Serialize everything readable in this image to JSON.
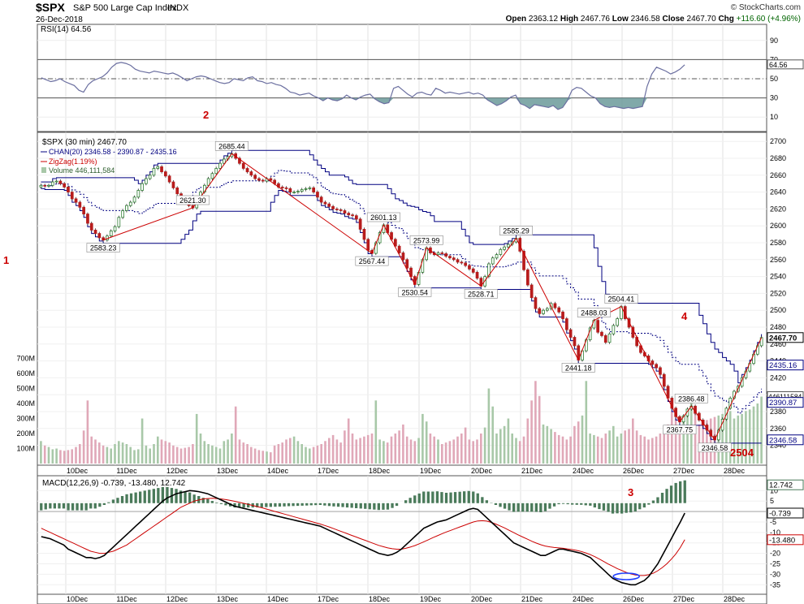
{
  "header": {
    "symbol": "$SPX",
    "name": "S&P 500 Large Cap Index",
    "exchange": "INDX",
    "date": "26-Dec-2018",
    "watermark": "© StockCharts.com",
    "ohlc": "Open 2363.12  High 2467.76  Low 2346.58  Close 2467.70  Chg +116.60 (+4.96%)",
    "ohlc_parts": [
      {
        "label": "Open",
        "value": "2363.12"
      },
      {
        "label": "High",
        "value": "2467.76"
      },
      {
        "label": "Low",
        "value": "2346.58"
      },
      {
        "label": "Close",
        "value": "2467.70"
      },
      {
        "label": "Chg",
        "value": "+116.60 (+4.96%)"
      }
    ],
    "up_color": "#006400"
  },
  "chart_data": [
    {
      "type": "line",
      "name": "RSI",
      "legend": "RSI(14) 64.56",
      "ylim": [
        0,
        100
      ],
      "yticks": [
        10,
        30,
        50,
        70,
        90
      ],
      "lines": [
        70,
        50,
        30
      ],
      "last_value": "64.56",
      "shaded_below": 30,
      "color": "#6b6fa0",
      "fill_color": "#6b9a9a",
      "values": [
        51,
        49,
        47,
        48,
        50,
        47,
        45,
        43,
        38,
        36,
        44,
        48,
        50,
        52,
        56,
        62,
        66,
        67,
        66,
        64,
        60,
        58,
        57,
        56,
        58,
        57,
        56,
        55,
        56,
        54,
        51,
        48,
        50,
        52,
        53,
        52,
        50,
        48,
        46,
        45,
        46,
        50,
        49,
        48,
        51,
        52,
        48,
        47,
        45,
        46,
        44,
        43,
        40,
        36,
        35,
        33,
        34,
        35,
        32,
        30,
        27,
        30,
        28,
        27,
        29,
        33,
        30,
        28,
        31,
        33,
        34,
        29,
        26,
        24,
        25,
        40,
        42,
        38,
        34,
        31,
        35,
        36,
        34,
        33,
        40,
        38,
        35,
        36,
        35,
        34,
        35,
        36,
        34,
        35,
        33,
        28,
        25,
        22,
        24,
        27,
        31,
        33,
        24,
        22,
        19,
        23,
        22,
        21,
        20,
        22,
        18,
        20,
        27,
        38,
        41,
        40,
        36,
        32,
        30,
        24,
        21,
        20,
        21,
        20,
        19,
        20,
        19,
        20,
        21,
        42,
        55,
        62,
        60,
        58,
        55,
        57,
        60,
        64.56
      ]
    },
    {
      "type": "candlestick",
      "name": "Price",
      "legend": "$SPX (30 min) 2467.70",
      "ylim": [
        2330,
        2705
      ],
      "yticks": [
        2340,
        2360,
        2380,
        2400,
        2420,
        2440,
        2460,
        2480,
        2500,
        2520,
        2540,
        2560,
        2580,
        2600,
        2620,
        2640,
        2660,
        2680,
        2700
      ],
      "x_ticks": [
        "10Dec",
        "11Dec",
        "12Dec",
        "13Dec",
        "14Dec",
        "17Dec",
        "18Dec",
        "19Dec",
        "20Dec",
        "21Dec",
        "24Dec",
        "26Dec",
        "27Dec",
        "28Dec"
      ],
      "close": [
        2648,
        2647,
        2648,
        2652,
        2653,
        2650,
        2646,
        2640,
        2632,
        2628,
        2622,
        2614,
        2603,
        2595,
        2591,
        2586,
        2583.23,
        2588,
        2594,
        2599,
        2610,
        2618,
        2624,
        2628,
        2634,
        2642,
        2650,
        2656,
        2660,
        2668,
        2670,
        2664,
        2659,
        2652,
        2645,
        2638,
        2632,
        2628,
        2624,
        2621.3,
        2632,
        2640,
        2648,
        2656,
        2662,
        2668,
        2674,
        2679,
        2682,
        2685.44,
        2680,
        2674,
        2668,
        2664,
        2660,
        2656,
        2654,
        2653,
        2656,
        2654,
        2650,
        2646,
        2645,
        2644,
        2640,
        2640,
        2641,
        2643,
        2644,
        2645,
        2640,
        2634,
        2628,
        2626,
        2623,
        2620,
        2619,
        2618,
        2615,
        2613,
        2612,
        2608,
        2596,
        2584,
        2571,
        2567.44,
        2580,
        2592,
        2601.13,
        2592,
        2584,
        2576,
        2568,
        2560,
        2550,
        2540,
        2530.54,
        2545,
        2560,
        2573.99,
        2568,
        2566,
        2568,
        2567,
        2564,
        2562,
        2560,
        2557,
        2556,
        2553,
        2549,
        2545,
        2538,
        2528.71,
        2540,
        2555,
        2562,
        2566,
        2572,
        2575,
        2578,
        2581,
        2585.29,
        2570,
        2548,
        2530,
        2515,
        2502,
        2496,
        2500,
        2502,
        2508,
        2503,
        2498,
        2490,
        2477,
        2468,
        2458,
        2441.18,
        2452,
        2465,
        2479,
        2488.03,
        2474,
        2470,
        2462,
        2472,
        2482,
        2490,
        2504.41,
        2490,
        2480,
        2468,
        2458,
        2450,
        2446,
        2440,
        2436,
        2432,
        2424,
        2410,
        2396,
        2384,
        2374,
        2367.75,
        2375,
        2383,
        2386.48,
        2378,
        2370,
        2364,
        2358,
        2351,
        2346.58,
        2358,
        2371,
        2384,
        2396,
        2404,
        2410,
        2420,
        2428,
        2437,
        2448,
        2458,
        2467.7
      ],
      "zigzag_legend": "ZigZag(1.19%)",
      "zigzag_color": "#cc0000",
      "zigzag_points": [
        {
          "label": "2583.23",
          "value": 2583.23
        },
        {
          "label": "2685.44",
          "value": 2685.44
        },
        {
          "label": "2621.30",
          "value": 2621.3
        },
        {
          "label": "2567.44",
          "value": 2567.44
        },
        {
          "label": "2601.13",
          "value": 2601.13
        },
        {
          "label": "2530.54",
          "value": 2530.54
        },
        {
          "label": "2573.99",
          "value": 2573.99
        },
        {
          "label": "2528.71",
          "value": 2528.71
        },
        {
          "label": "2585.29",
          "value": 2585.29
        },
        {
          "label": "2441.18",
          "value": 2441.18
        },
        {
          "label": "2488.03",
          "value": 2488.03
        },
        {
          "label": "2504.41",
          "value": 2504.41
        },
        {
          "label": "2367.75",
          "value": 2367.75
        },
        {
          "label": "2386.48",
          "value": 2386.48
        },
        {
          "label": "2346.58",
          "value": 2346.58
        }
      ],
      "channel_legend": "CHAN(20) 2346.58 - 2390.87 - 2435.16",
      "channel_color": "#000080",
      "price_labels": [
        {
          "text": "2467.70",
          "value": 2467.7,
          "style": "dark"
        },
        {
          "text": "2435.16",
          "value": 2435.16,
          "style": "navy"
        },
        {
          "text": "2390.87",
          "value": 2390.87,
          "style": "navy"
        },
        {
          "text": "2346.58",
          "value": 2346.58,
          "style": "navy"
        }
      ],
      "up_color": "#2e7d32",
      "down_color": "#b71c1c"
    },
    {
      "type": "bar",
      "name": "Volume",
      "legend": "Volume 446,111,584",
      "ylim": [
        0,
        800
      ],
      "yticks_labels": [
        "100M",
        "200M",
        "300M",
        "400M",
        "500M",
        "600M",
        "700M"
      ],
      "yticks": [
        100,
        200,
        300,
        400,
        500,
        600,
        700
      ],
      "last_value_label": "446111584",
      "values": [
        150,
        120,
        110,
        95,
        100,
        90,
        85,
        90,
        95,
        110,
        130,
        220,
        420,
        180,
        160,
        140,
        120,
        110,
        100,
        130,
        150,
        140,
        130,
        110,
        90,
        95,
        300,
        120,
        100,
        130,
        180,
        160,
        150,
        140,
        120,
        110,
        100,
        105,
        110,
        130,
        330,
        200,
        150,
        130,
        120,
        110,
        100,
        150,
        160,
        200,
        380,
        160,
        140,
        130,
        110,
        100,
        90,
        85,
        80,
        75,
        120,
        130,
        140,
        160,
        170,
        180,
        150,
        130,
        110,
        100,
        110,
        120,
        130,
        150,
        170,
        190,
        160,
        140,
        220,
        300,
        200,
        160,
        170,
        180,
        190,
        200,
        420,
        160,
        150,
        140,
        180,
        200,
        220,
        260,
        180,
        160,
        150,
        170,
        330,
        280,
        200,
        180,
        160,
        130,
        140,
        150,
        160,
        180,
        200,
        240,
        160,
        150,
        160,
        200,
        240,
        500,
        380,
        200,
        230,
        250,
        300,
        200,
        170,
        150,
        180,
        300,
        420,
        550,
        450,
        260,
        250,
        230,
        210,
        190,
        180,
        160,
        180,
        250,
        280,
        320,
        550,
        200,
        190,
        180,
        170,
        200,
        220,
        250,
        180,
        200,
        220,
        230,
        300,
        220,
        190,
        180,
        160,
        170,
        180,
        200,
        210,
        260,
        350,
        300,
        250,
        300,
        350,
        420,
        360,
        260,
        280,
        290,
        300,
        310,
        320,
        330,
        340,
        350,
        300,
        320,
        330,
        350,
        360,
        380,
        400,
        446
      ]
    },
    {
      "type": "line",
      "name": "MACD",
      "legend": "MACD(12,26,9) -0.739, -13.480, 12.742",
      "ylim": [
        -38,
        14
      ],
      "yticks": [
        -35,
        -30,
        -25,
        -20,
        -15,
        -10,
        -5,
        0,
        5,
        10
      ],
      "hist_color": "#4a7a5a",
      "line_color": "#000000",
      "signal_color": "#cc0000",
      "last_labels": [
        {
          "text": "12.742",
          "value": 12.742
        },
        {
          "text": "-0.739",
          "value": -0.739
        },
        {
          "text": "-13.480",
          "value": -13.48
        }
      ],
      "macd": [
        -12,
        -12.5,
        -13,
        -14,
        -15,
        -16,
        -18,
        -19,
        -20,
        -21,
        -22,
        -22,
        -22.5,
        -22,
        -21,
        -19,
        -17,
        -15,
        -13,
        -11,
        -9,
        -7,
        -5,
        -3,
        -1,
        1,
        3,
        5,
        6.5,
        7.5,
        8.5,
        9,
        9.5,
        10,
        9.8,
        9.5,
        9,
        8.5,
        7.5,
        6.5,
        5.5,
        4.5,
        3.5,
        2.5,
        2,
        1.5,
        1,
        0.5,
        0,
        -0.5,
        -1,
        -1.5,
        -2,
        -2.5,
        -3,
        -3.5,
        -4,
        -4.5,
        -5,
        -5.5,
        -6,
        -6.5,
        -7,
        -8,
        -9,
        -10,
        -11,
        -12,
        -13,
        -14,
        -15,
        -16,
        -17,
        -18,
        -19,
        -20,
        -20.5,
        -21,
        -20.5,
        -19.5,
        -18,
        -16,
        -14,
        -12,
        -10,
        -8,
        -7,
        -6,
        -5,
        -4.5,
        -4,
        -3,
        -2,
        -1,
        0,
        1,
        1.5,
        1,
        -1,
        -3,
        -5,
        -7,
        -9,
        -11,
        -13,
        -15,
        -16,
        -17,
        -18,
        -19,
        -20,
        -21,
        -21,
        -20,
        -19,
        -18,
        -18,
        -18.5,
        -19,
        -19.5,
        -20,
        -21,
        -22,
        -24,
        -26,
        -28,
        -30,
        -32,
        -33,
        -34,
        -34.5,
        -35,
        -35,
        -34,
        -33,
        -31,
        -28,
        -25,
        -21,
        -17,
        -13,
        -9,
        -5,
        -0.739
      ],
      "signal": [
        -8,
        -9,
        -10,
        -11,
        -12,
        -13,
        -14,
        -15,
        -16,
        -17,
        -18,
        -19,
        -19.5,
        -20,
        -20,
        -19.5,
        -19,
        -18,
        -17,
        -16,
        -14.5,
        -13,
        -11.5,
        -10,
        -8.5,
        -7,
        -5.5,
        -4,
        -2.5,
        -1,
        0.5,
        2,
        3,
        4,
        5,
        5.5,
        6,
        6.2,
        6.3,
        6.2,
        6,
        5.7,
        5.3,
        4.9,
        4.4,
        3.9,
        3.4,
        2.9,
        2.3,
        1.8,
        1.2,
        0.6,
        0,
        -0.6,
        -1.2,
        -1.8,
        -2.4,
        -3,
        -3.6,
        -4.2,
        -4.8,
        -5.4,
        -6,
        -6.7,
        -7.4,
        -8.2,
        -9,
        -9.8,
        -10.6,
        -11.4,
        -12.2,
        -13,
        -13.8,
        -14.6,
        -15.4,
        -16.2,
        -16.8,
        -17.4,
        -17.8,
        -18,
        -18,
        -17.6,
        -17,
        -16.3,
        -15.4,
        -14.5,
        -13.5,
        -12.5,
        -11.6,
        -10.7,
        -9.8,
        -9,
        -8.2,
        -7.4,
        -6.6,
        -5.8,
        -5,
        -4.5,
        -4.4,
        -4.6,
        -5.2,
        -6,
        -6.9,
        -7.9,
        -9,
        -10.1,
        -11.2,
        -12.2,
        -13.2,
        -14.2,
        -15.1,
        -15.9,
        -16.5,
        -16.9,
        -17.2,
        -17.4,
        -17.6,
        -17.9,
        -18.2,
        -18.6,
        -19.1,
        -19.8,
        -20.6,
        -21.6,
        -22.7,
        -23.9,
        -25.1,
        -26.2,
        -27.3,
        -28.2,
        -29.1,
        -29.8,
        -30.3,
        -30.6,
        -30.6,
        -30.2,
        -29.5,
        -28.3,
        -26.8,
        -25,
        -22.8,
        -20.3,
        -17.2,
        -13.48
      ]
    }
  ],
  "annotations": [
    {
      "text": "1",
      "color": "#cc0000"
    },
    {
      "text": "2",
      "color": "#cc0000"
    },
    {
      "text": "3",
      "color": "#cc0000"
    },
    {
      "text": "4",
      "color": "#cc0000"
    },
    {
      "text": "2504",
      "color": "#cc0000"
    }
  ]
}
